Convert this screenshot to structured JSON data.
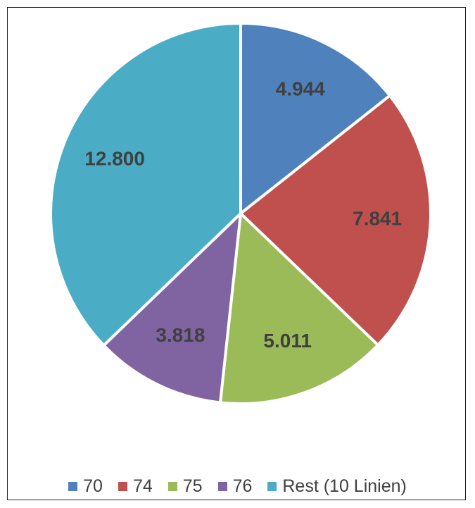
{
  "chart_data": {
    "type": "pie",
    "series": [
      {
        "name": "70",
        "value": 4944,
        "label": "4.944",
        "color": "#4F81BD"
      },
      {
        "name": "74",
        "value": 7841,
        "label": "7.841",
        "color": "#C0504D"
      },
      {
        "name": "75",
        "value": 5011,
        "label": "5.011",
        "color": "#9BBB59"
      },
      {
        "name": "76",
        "value": 3818,
        "label": "3.818",
        "color": "#8064A2"
      },
      {
        "name": "Rest (10 Linien)",
        "value": 12800,
        "label": "12.800",
        "color": "#4BACC6"
      }
    ],
    "start_angle": "12 o'clock",
    "direction": "clockwise",
    "legend": "bottom"
  }
}
